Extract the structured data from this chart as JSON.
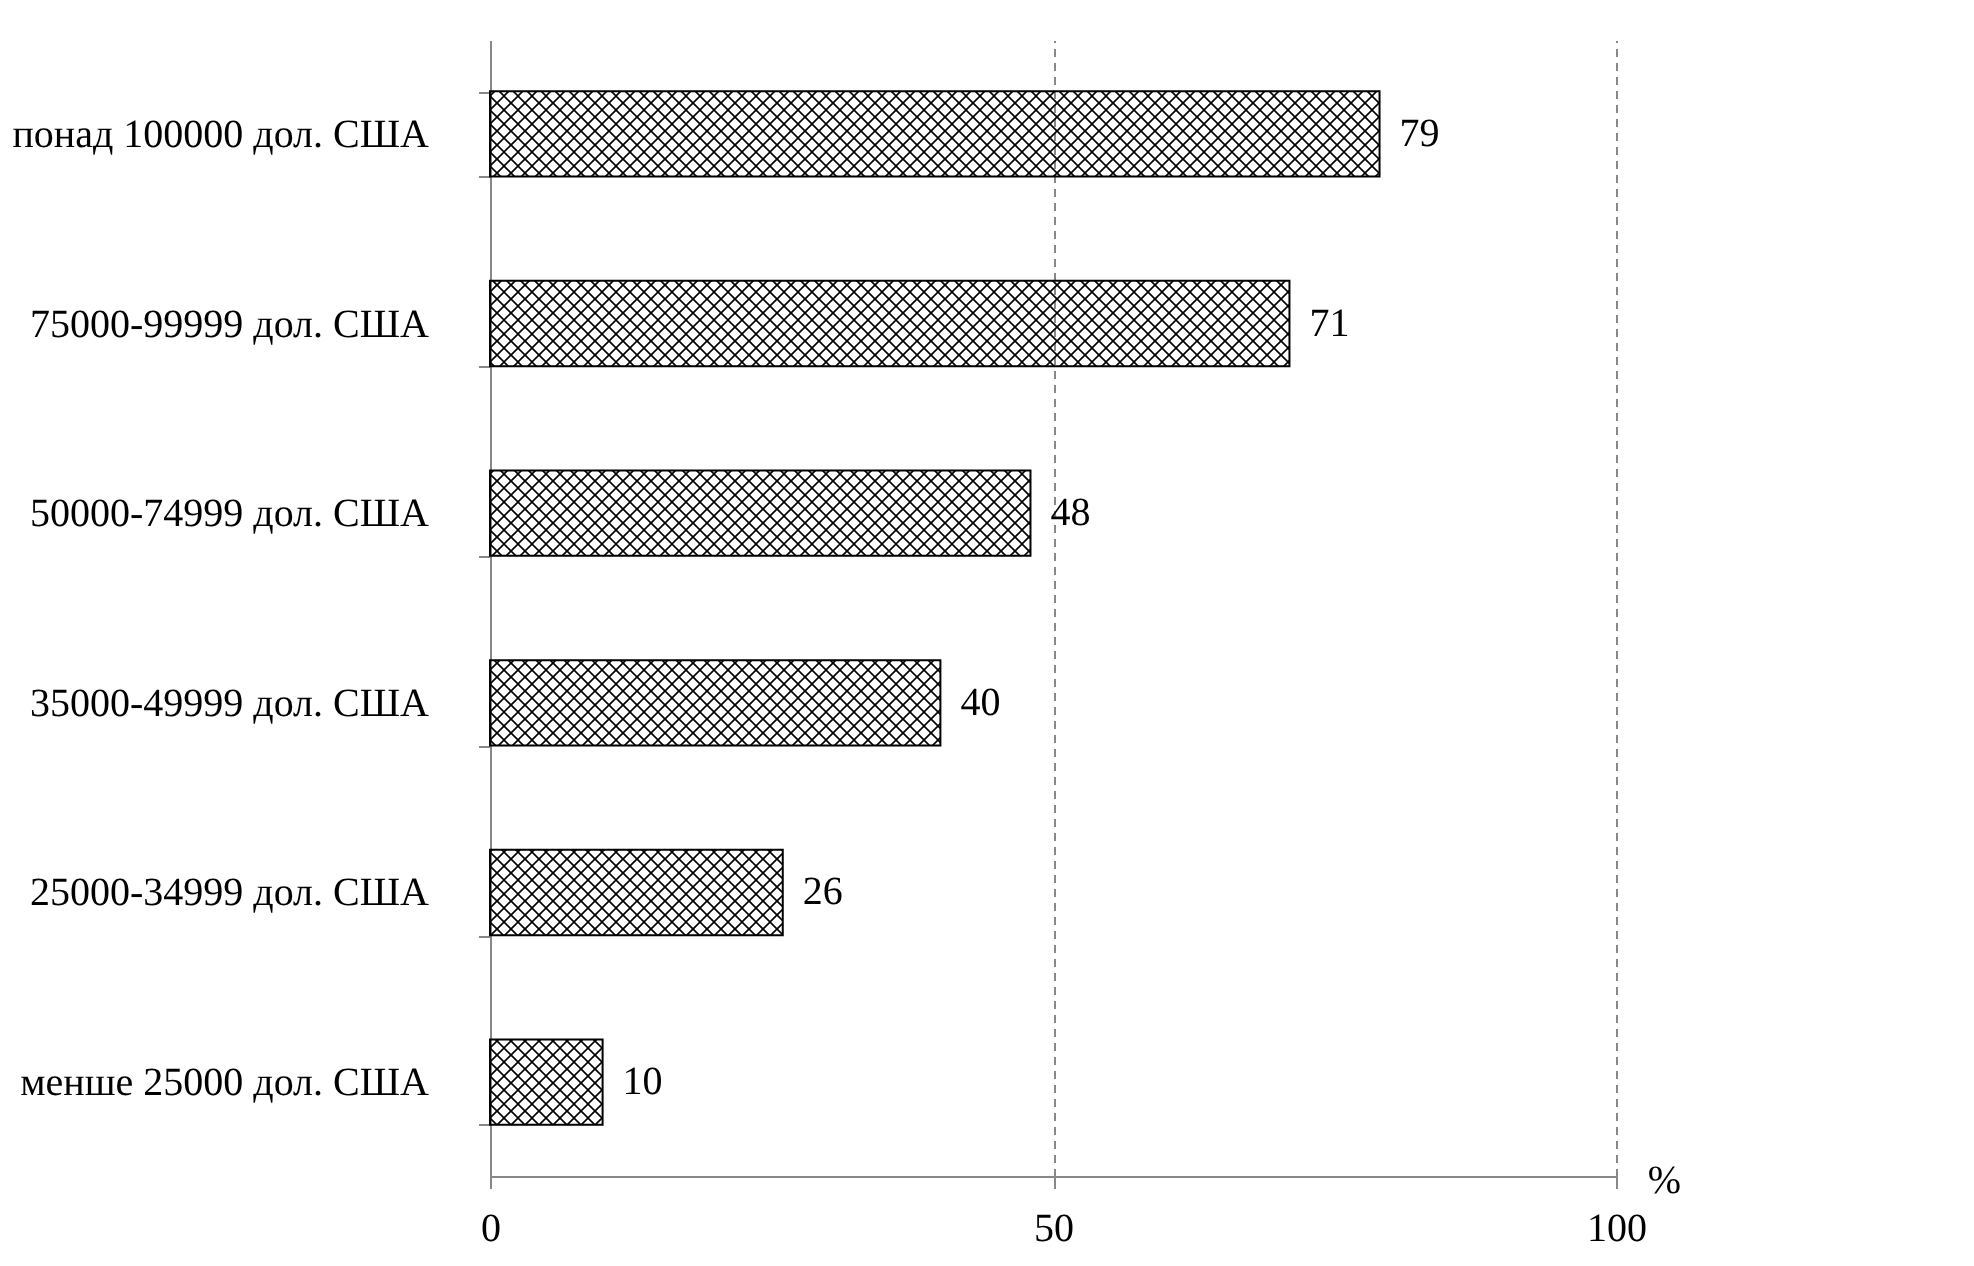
{
  "chart_data": {
    "type": "bar",
    "orientation": "horizontal",
    "xlabel": "%",
    "categories": [
      "понад 100000 дол. США",
      "75000-99999 дол. США",
      "50000-74999 дол. США",
      "35000-49999 дол. США",
      "25000-34999 дол. США",
      "менше 25000 дол. США"
    ],
    "values": [
      79,
      71,
      48,
      40,
      26,
      10
    ],
    "color": "#000000",
    "xlim": [
      0,
      100
    ],
    "xticks": [
      0,
      50,
      100
    ],
    "grid": "x",
    "data_labels": true
  }
}
